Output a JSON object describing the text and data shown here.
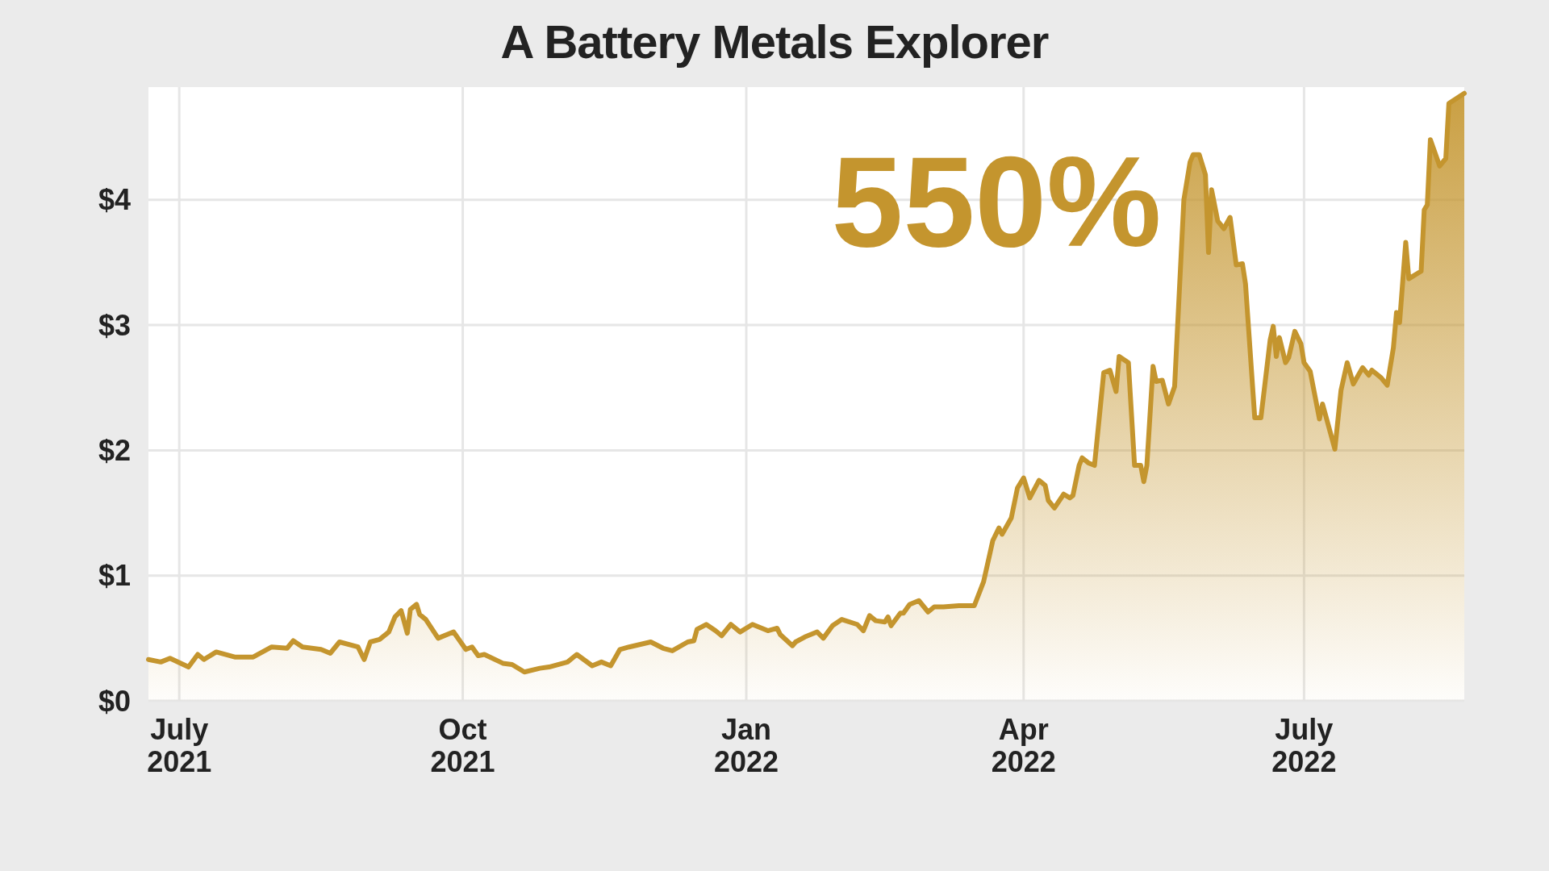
{
  "chart_data": {
    "type": "area",
    "title": "A Battery Metals Explorer",
    "annotations": [
      "550%"
    ],
    "x": [
      "2021-06-21",
      "2021-06-25",
      "2021-06-28",
      "2021-07-04",
      "2021-07-07",
      "2021-07-09",
      "2021-07-13",
      "2021-07-19",
      "2021-07-25",
      "2021-07-31",
      "2021-08-05",
      "2021-08-07",
      "2021-08-10",
      "2021-08-16",
      "2021-08-19",
      "2021-08-22",
      "2021-08-28",
      "2021-08-30",
      "2021-09-01",
      "2021-09-04",
      "2021-09-07",
      "2021-09-09",
      "2021-09-11",
      "2021-09-13",
      "2021-09-14",
      "2021-09-16",
      "2021-09-17",
      "2021-09-19",
      "2021-09-23",
      "2021-09-28",
      "2021-10-02",
      "2021-10-04",
      "2021-10-06",
      "2021-10-08",
      "2021-10-14",
      "2021-10-17",
      "2021-10-21",
      "2021-10-26",
      "2021-10-29",
      "2021-11-04",
      "2021-11-07",
      "2021-11-12",
      "2021-11-15",
      "2021-11-18",
      "2021-11-21",
      "2021-11-24",
      "2021-12-01",
      "2021-12-05",
      "2021-12-08",
      "2021-12-13",
      "2021-12-15",
      "2021-12-16",
      "2021-12-19",
      "2021-12-22",
      "2021-12-24",
      "2021-12-27",
      "2021-12-30",
      "2022-01-03",
      "2022-01-08",
      "2022-01-11",
      "2022-01-12",
      "2022-01-16",
      "2022-01-17",
      "2022-01-20",
      "2022-01-24",
      "2022-01-26",
      "2022-01-29",
      "2022-02-01",
      "2022-02-06",
      "2022-02-08",
      "2022-02-10",
      "2022-02-12",
      "2022-02-15",
      "2022-02-16",
      "2022-02-17",
      "2022-02-20",
      "2022-02-21",
      "2022-02-23",
      "2022-02-26",
      "2022-03-01",
      "2022-03-03",
      "2022-03-06",
      "2022-03-11",
      "2022-03-16",
      "2022-03-19",
      "2022-03-21",
      "2022-03-22",
      "2022-03-24",
      "2022-03-25",
      "2022-03-28",
      "2022-03-30",
      "2022-04-01",
      "2022-04-03",
      "2022-04-06",
      "2022-04-08",
      "2022-04-09",
      "2022-04-11",
      "2022-04-14",
      "2022-04-16",
      "2022-04-17",
      "2022-04-19",
      "2022-04-20",
      "2022-04-22",
      "2022-04-24",
      "2022-04-27",
      "2022-04-29",
      "2022-05-01",
      "2022-05-02",
      "2022-05-05",
      "2022-05-07",
      "2022-05-09",
      "2022-05-10",
      "2022-05-11",
      "2022-05-13",
      "2022-05-14",
      "2022-05-16",
      "2022-05-18",
      "2022-05-20",
      "2022-05-23",
      "2022-05-25",
      "2022-05-26",
      "2022-05-28",
      "2022-05-30",
      "2022-05-31",
      "2022-06-01",
      "2022-06-03",
      "2022-06-05",
      "2022-06-07",
      "2022-06-09",
      "2022-06-11",
      "2022-06-12",
      "2022-06-15",
      "2022-06-17",
      "2022-06-20",
      "2022-06-21",
      "2022-06-22",
      "2022-06-23",
      "2022-06-25",
      "2022-06-26",
      "2022-06-28",
      "2022-06-30",
      "2022-07-01",
      "2022-07-03",
      "2022-07-06",
      "2022-07-07",
      "2022-07-11",
      "2022-07-13",
      "2022-07-15",
      "2022-07-17",
      "2022-07-20",
      "2022-07-22",
      "2022-07-23",
      "2022-07-26",
      "2022-07-28",
      "2022-07-30",
      "2022-07-31",
      "2022-08-01",
      "2022-08-03",
      "2022-08-04",
      "2022-08-08",
      "2022-08-09",
      "2022-08-10",
      "2022-08-11",
      "2022-08-14",
      "2022-08-16",
      "2022-08-17",
      "2022-08-22"
    ],
    "series": [
      {
        "color": "#c4952e",
        "values": [
          0.33,
          0.31,
          0.34,
          0.27,
          0.37,
          0.33,
          0.39,
          0.35,
          0.35,
          0.43,
          0.42,
          0.48,
          0.43,
          0.41,
          0.38,
          0.47,
          0.43,
          0.33,
          0.47,
          0.49,
          0.55,
          0.67,
          0.72,
          0.54,
          0.73,
          0.77,
          0.69,
          0.65,
          0.5,
          0.55,
          0.41,
          0.43,
          0.36,
          0.37,
          0.3,
          0.29,
          0.23,
          0.26,
          0.27,
          0.31,
          0.37,
          0.28,
          0.31,
          0.28,
          0.41,
          0.43,
          0.47,
          0.42,
          0.4,
          0.47,
          0.48,
          0.57,
          0.61,
          0.56,
          0.52,
          0.61,
          0.55,
          0.61,
          0.56,
          0.58,
          0.53,
          0.44,
          0.47,
          0.51,
          0.55,
          0.5,
          0.6,
          0.65,
          0.61,
          0.56,
          0.68,
          0.64,
          0.63,
          0.67,
          0.6,
          0.7,
          0.7,
          0.77,
          0.8,
          0.71,
          0.75,
          0.75,
          0.76,
          0.76,
          0.95,
          1.17,
          1.28,
          1.38,
          1.33,
          1.46,
          1.7,
          1.78,
          1.62,
          1.76,
          1.72,
          1.6,
          1.54,
          1.65,
          1.62,
          1.64,
          1.88,
          1.94,
          1.9,
          1.88,
          2.62,
          2.64,
          2.47,
          2.75,
          2.7,
          1.88,
          1.88,
          1.75,
          1.88,
          2.67,
          2.55,
          2.56,
          2.37,
          2.51,
          4.0,
          4.3,
          4.36,
          4.36,
          4.2,
          3.58,
          4.08,
          3.83,
          3.77,
          3.86,
          3.48,
          3.49,
          3.33,
          2.26,
          2.26,
          2.88,
          2.99,
          2.75,
          2.9,
          2.7,
          2.74,
          2.95,
          2.85,
          2.7,
          2.63,
          2.25,
          2.37,
          2.01,
          2.48,
          2.7,
          2.53,
          2.66,
          2.6,
          2.64,
          2.58,
          2.52,
          2.82,
          3.1,
          3.02,
          3.66,
          3.37,
          3.43,
          3.92,
          3.96,
          4.48,
          4.27,
          4.33,
          4.77,
          4.85
        ]
      }
    ],
    "xlim": [
      "2021-06-21",
      "2022-08-22"
    ],
    "xticks": [
      {
        "value": "2021-07-01",
        "label": "July\n2021"
      },
      {
        "value": "2021-10-01",
        "label": "Oct\n2021"
      },
      {
        "value": "2022-01-01",
        "label": "Jan\n2022"
      },
      {
        "value": "2022-04-01",
        "label": "Apr\n2022"
      },
      {
        "value": "2022-07-01",
        "label": "July\n2022"
      }
    ],
    "ylim": [
      0,
      4.9
    ],
    "yticks": [
      {
        "value": 0,
        "label": "$0"
      },
      {
        "value": 1,
        "label": "$1"
      },
      {
        "value": 2,
        "label": "$2"
      },
      {
        "value": 3,
        "label": "$3"
      },
      {
        "value": 4,
        "label": "$4"
      }
    ],
    "grid": true
  }
}
